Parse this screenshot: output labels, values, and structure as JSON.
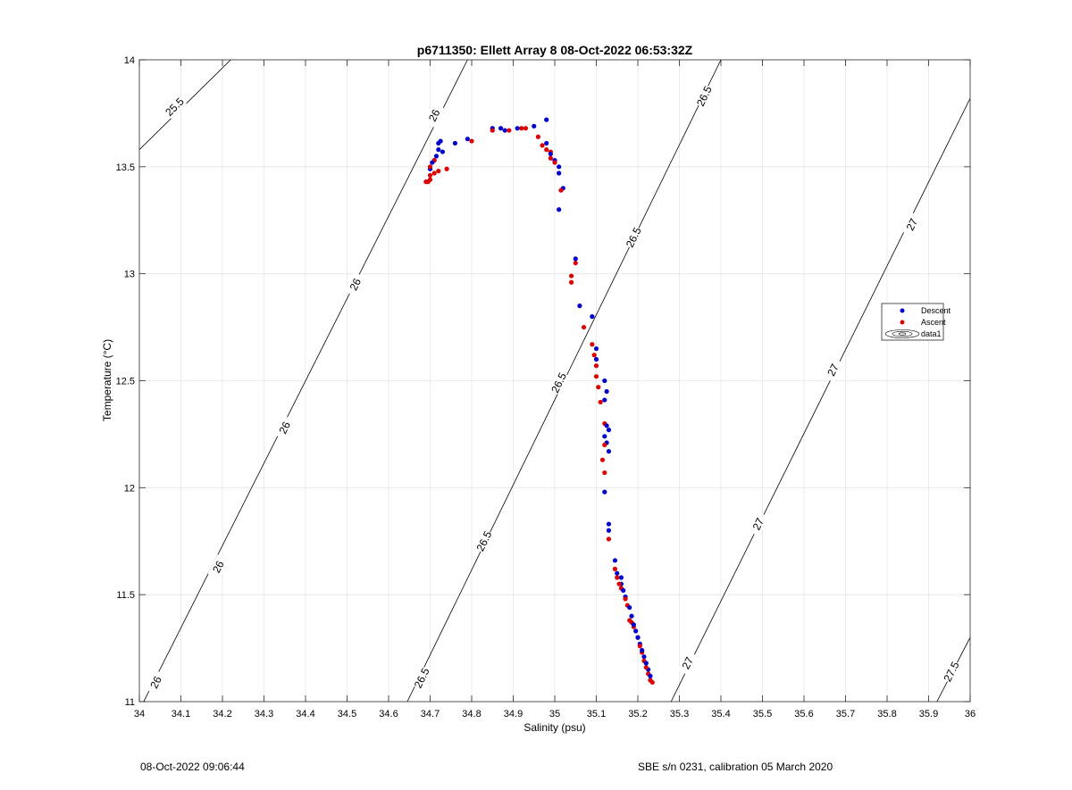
{
  "chart_data": {
    "type": "scatter",
    "title": "p6711350: Ellett Array 8 08-Oct-2022 06:53:32Z",
    "xlabel": "Salinity (psu)",
    "ylabel": "Temperature (°C)",
    "xlim": [
      34,
      36
    ],
    "ylim": [
      11,
      14
    ],
    "xticks": [
      "34",
      "34.1",
      "34.2",
      "34.3",
      "34.4",
      "34.5",
      "34.6",
      "34.7",
      "34.8",
      "34.9",
      "35",
      "35.1",
      "35.2",
      "35.3",
      "35.4",
      "35.5",
      "35.6",
      "35.7",
      "35.8",
      "35.9",
      "36"
    ],
    "yticks": [
      "11",
      "11.5",
      "12",
      "12.5",
      "13",
      "13.5",
      "14"
    ],
    "grid": true,
    "legend_position": "right",
    "legend": [
      "Descent",
      "Ascent",
      "data1"
    ],
    "series": [
      {
        "name": "Descent",
        "color": "#0000cc",
        "points": [
          [
            34.7,
            13.49
          ],
          [
            34.705,
            13.52
          ],
          [
            34.71,
            13.53
          ],
          [
            34.715,
            13.55
          ],
          [
            34.72,
            13.58
          ],
          [
            34.72,
            13.61
          ],
          [
            34.725,
            13.62
          ],
          [
            34.73,
            13.57
          ],
          [
            34.76,
            13.61
          ],
          [
            34.79,
            13.63
          ],
          [
            34.85,
            13.68
          ],
          [
            34.87,
            13.68
          ],
          [
            34.88,
            13.67
          ],
          [
            34.91,
            13.68
          ],
          [
            34.95,
            13.69
          ],
          [
            34.98,
            13.72
          ],
          [
            34.98,
            13.61
          ],
          [
            34.99,
            13.56
          ],
          [
            35.0,
            13.53
          ],
          [
            35.01,
            13.5
          ],
          [
            35.01,
            13.47
          ],
          [
            35.01,
            13.3
          ],
          [
            35.02,
            13.4
          ],
          [
            35.05,
            13.07
          ],
          [
            35.06,
            12.85
          ],
          [
            35.09,
            12.8
          ],
          [
            35.1,
            12.65
          ],
          [
            35.1,
            12.6
          ],
          [
            35.12,
            12.5
          ],
          [
            35.125,
            12.45
          ],
          [
            35.12,
            12.41
          ],
          [
            35.125,
            12.29
          ],
          [
            35.13,
            12.27
          ],
          [
            35.12,
            12.24
          ],
          [
            35.125,
            12.21
          ],
          [
            35.13,
            12.17
          ],
          [
            35.12,
            11.98
          ],
          [
            35.13,
            11.83
          ],
          [
            35.13,
            11.8
          ],
          [
            35.145,
            11.66
          ],
          [
            35.15,
            11.6
          ],
          [
            35.16,
            11.58
          ],
          [
            35.16,
            11.55
          ],
          [
            35.165,
            11.52
          ],
          [
            35.17,
            11.49
          ],
          [
            35.18,
            11.44
          ],
          [
            35.185,
            11.4
          ],
          [
            35.19,
            11.36
          ],
          [
            35.195,
            11.33
          ],
          [
            35.2,
            11.3
          ],
          [
            35.205,
            11.27
          ],
          [
            35.21,
            11.24
          ],
          [
            35.215,
            11.21
          ],
          [
            35.22,
            11.18
          ],
          [
            35.225,
            11.15
          ],
          [
            35.23,
            11.12
          ],
          [
            35.23,
            11.1
          ]
        ]
      },
      {
        "name": "Ascent",
        "color": "#dd0000",
        "points": [
          [
            34.69,
            13.43
          ],
          [
            34.695,
            13.43
          ],
          [
            34.7,
            13.44
          ],
          [
            34.7,
            13.46
          ],
          [
            34.71,
            13.47
          ],
          [
            34.72,
            13.48
          ],
          [
            34.74,
            13.49
          ],
          [
            34.7,
            13.5
          ],
          [
            34.71,
            13.53
          ],
          [
            34.8,
            13.62
          ],
          [
            34.85,
            13.67
          ],
          [
            34.89,
            13.67
          ],
          [
            34.92,
            13.68
          ],
          [
            34.93,
            13.68
          ],
          [
            34.96,
            13.64
          ],
          [
            34.97,
            13.6
          ],
          [
            34.98,
            13.58
          ],
          [
            34.99,
            13.57
          ],
          [
            34.99,
            13.54
          ],
          [
            35.0,
            13.52
          ],
          [
            35.015,
            13.39
          ],
          [
            35.04,
            12.99
          ],
          [
            35.04,
            12.96
          ],
          [
            35.05,
            13.05
          ],
          [
            35.07,
            12.75
          ],
          [
            35.09,
            12.67
          ],
          [
            35.095,
            12.62
          ],
          [
            35.1,
            12.57
          ],
          [
            35.1,
            12.52
          ],
          [
            35.105,
            12.47
          ],
          [
            35.11,
            12.4
          ],
          [
            35.12,
            12.3
          ],
          [
            35.12,
            12.2
          ],
          [
            35.115,
            12.13
          ],
          [
            35.12,
            12.07
          ],
          [
            35.13,
            11.76
          ],
          [
            35.145,
            11.62
          ],
          [
            35.15,
            11.58
          ],
          [
            35.155,
            11.55
          ],
          [
            35.16,
            11.53
          ],
          [
            35.17,
            11.48
          ],
          [
            35.175,
            11.45
          ],
          [
            35.18,
            11.38
          ],
          [
            35.185,
            11.37
          ],
          [
            35.19,
            11.35
          ],
          [
            35.2,
            11.3
          ],
          [
            35.205,
            11.26
          ],
          [
            35.21,
            11.23
          ],
          [
            35.215,
            11.19
          ],
          [
            35.22,
            11.16
          ],
          [
            35.225,
            11.13
          ],
          [
            35.23,
            11.1
          ],
          [
            35.235,
            11.09
          ]
        ]
      }
    ],
    "contours": [
      {
        "label": "25.5",
        "points": [
          [
            34.0,
            13.58
          ],
          [
            34.22,
            14.0
          ]
        ],
        "labels_at": [
          [
            34.085,
            13.78
          ]
        ]
      },
      {
        "label": "26",
        "points": [
          [
            34.0,
            10.96
          ],
          [
            34.79,
            14.0
          ]
        ],
        "labels_at": [
          [
            34.04,
            11.09
          ],
          [
            34.19,
            11.63
          ],
          [
            34.35,
            12.28
          ],
          [
            34.52,
            12.95
          ],
          [
            34.71,
            13.74
          ]
        ]
      },
      {
        "label": "26.5",
        "points": [
          [
            34.645,
            11.0
          ],
          [
            35.4,
            14.0
          ]
        ],
        "labels_at": [
          [
            34.68,
            11.11
          ],
          [
            34.83,
            11.75
          ],
          [
            35.01,
            12.49
          ],
          [
            35.19,
            13.17
          ],
          [
            35.36,
            13.83
          ]
        ]
      },
      {
        "label": "27",
        "points": [
          [
            35.28,
            11.0
          ],
          [
            36.0,
            13.82
          ]
        ],
        "labels_at": [
          [
            35.32,
            11.18
          ],
          [
            35.49,
            11.83
          ],
          [
            35.67,
            12.55
          ],
          [
            35.86,
            13.23
          ]
        ]
      },
      {
        "label": "27.5",
        "points": [
          [
            35.92,
            11.0
          ],
          [
            36.0,
            11.3
          ]
        ],
        "labels_at": [
          [
            35.955,
            11.14
          ]
        ]
      }
    ]
  },
  "footer": {
    "timestamp": "08-Oct-2022 09:06:44",
    "calibration": "SBE s/n 0231, calibration 05 March 2020"
  }
}
